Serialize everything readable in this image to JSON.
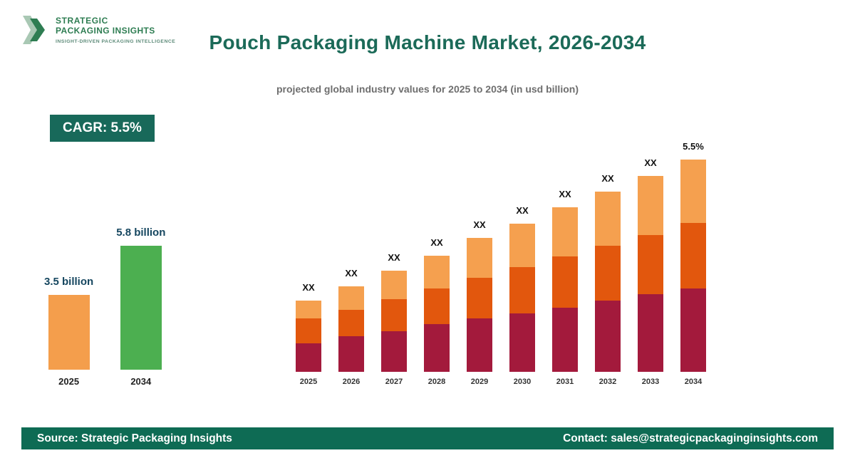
{
  "brand": {
    "name_line1": "STRATEGIC",
    "name_line2": "PACKAGING INSIGHTS",
    "tagline": "INSIGHT-DRIVEN PACKAGING INTELLIGENCE"
  },
  "header": {
    "title": "Pouch Packaging Machine Market, 2026-2034",
    "subtitle": "projected global industry values for 2025 to 2034 (in usd billion)"
  },
  "cagr_badge": {
    "label": "CAGR: 5.5%"
  },
  "colors": {
    "brand_green": "#2E7D52",
    "brand_green_light": "#A9C8B4",
    "title_color": "#1B6A58",
    "badge_bg": "#18695A",
    "footer_bg": "#0E6B54"
  },
  "chart_data": [
    {
      "name": "summary-bar-chart",
      "type": "bar",
      "categories": [
        "2025",
        "2034"
      ],
      "values": [
        3.5,
        5.8
      ],
      "value_labels": [
        "3.5 billion",
        "5.8 billion"
      ],
      "bar_colors": [
        "#F49E4C",
        "#4CAF50"
      ],
      "units": "usd billion",
      "ylim": [
        0,
        6
      ]
    },
    {
      "name": "stacked-projection-chart",
      "type": "bar",
      "stacked": true,
      "categories": [
        "2025",
        "2026",
        "2027",
        "2028",
        "2029",
        "2030",
        "2031",
        "2032",
        "2033",
        "2034"
      ],
      "series": [
        {
          "name": "segment-bottom",
          "color": "#A31A3C",
          "values": [
            40,
            50,
            57,
            67,
            75,
            82,
            90,
            100,
            109,
            117
          ]
        },
        {
          "name": "segment-middle",
          "color": "#E2570D",
          "values": [
            35,
            37,
            45,
            50,
            57,
            65,
            72,
            77,
            83,
            92
          ]
        },
        {
          "name": "segment-top",
          "color": "#F5A04F",
          "values": [
            25,
            33,
            40,
            46,
            56,
            61,
            69,
            76,
            83,
            89
          ]
        }
      ],
      "bar_labels": [
        "XX",
        "XX",
        "XX",
        "XX",
        "XX",
        "XX",
        "XX",
        "XX",
        "XX",
        "5.5%"
      ],
      "note": "values shown as XX placeholders; relative bar heights estimated from pixels",
      "legend": "none",
      "grid": "off"
    }
  ],
  "footer": {
    "source": "Source: Strategic Packaging Insights",
    "contact": "Contact: sales@strategicpackaginginsights.com"
  }
}
